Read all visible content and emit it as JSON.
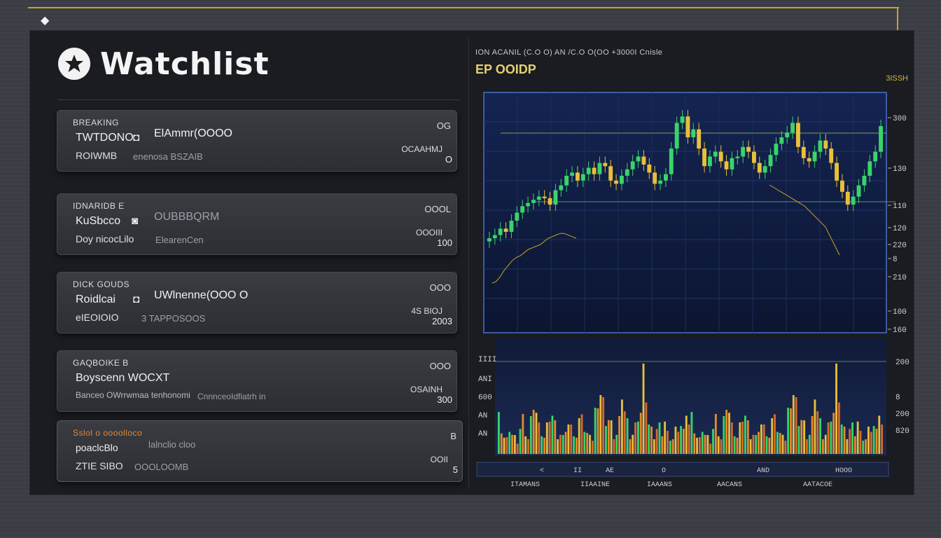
{
  "app": {
    "title": "Watchlist"
  },
  "watchlist": [
    {
      "header": "BREAKING",
      "name": "TWTDONO",
      "price": "ElAmmr(OOOO",
      "sub": "ROIWMB",
      "sub_detail": "enenosa BSZAIB",
      "right_top": "OG",
      "change": "OCAAHMJ",
      "right_bottom": "O"
    },
    {
      "header": "IDNARIDB E",
      "name": "KuSbcco",
      "price": "OUBBBQRM",
      "sub": "Doy nicocLilo",
      "sub_detail": "ElearenCen",
      "right_top": "OOOL",
      "change": "OOOIII",
      "right_bottom": "100"
    },
    {
      "header": "DICK GOUDS",
      "name": "Roidlcai",
      "price": "UWlnenne(OOO O",
      "sub": "eIEOIOIO",
      "sub_detail": "3 TAPPOSOOS",
      "right_top": "OOO",
      "change": "4S BIOJ",
      "right_bottom": "2003"
    },
    {
      "header": "GAQBOIKE B",
      "name": "Boyscenn WOCXT",
      "price": "",
      "sub": "Banceo OWrrwmaa tenhonomi",
      "sub_detail": "CnnnceoIdfiatrh in",
      "right_top": "OOO",
      "change": "OSAINH",
      "right_bottom": "300"
    },
    {
      "header": "Sslol o oooolloco",
      "name": "poaclcBlo",
      "price": "lalnclio cloo",
      "sub": "ZTIE SIBO",
      "sub_detail": "OOOLOOMB",
      "right_top": "B",
      "change": "OOII",
      "right_bottom": "5"
    }
  ],
  "chart_header": {
    "line": "ION ACANIL (C.O O) AN /C.O O(OO +3000I Cnisle",
    "small": "EP OOIDP",
    "right": "3ISSH"
  },
  "chart_data": {
    "type": "candlestick",
    "price_axis_labels": [
      "300",
      "130",
      "110",
      "120",
      "220",
      "8",
      "210",
      "100",
      "160"
    ],
    "volume_axis_labels": [
      "200",
      "8",
      "200",
      "820"
    ],
    "left_volume_labels": [
      "IIII",
      "ANI",
      "600",
      "AN",
      "AN"
    ],
    "time_labels": [
      "<",
      "II",
      "AE",
      "O",
      "AND",
      "HOOO"
    ],
    "bottom_labels": [
      "ITAMANS",
      "IIAAINE",
      "IAAANS",
      "AACANS",
      "AATACOE"
    ],
    "candles": [
      118,
      122,
      130,
      126,
      140,
      150,
      158,
      162,
      166,
      170,
      168,
      160,
      178,
      184,
      196,
      200,
      190,
      198,
      206,
      198,
      212,
      208,
      190,
      186,
      196,
      204,
      214,
      220,
      210,
      200,
      186,
      190,
      198,
      230,
      262,
      270,
      244,
      254,
      230,
      208,
      220,
      226,
      214,
      204,
      218,
      220,
      232,
      226,
      212,
      200,
      208,
      222,
      236,
      244,
      250,
      262,
      232,
      218,
      214,
      226,
      240,
      230,
      212,
      190,
      176,
      160,
      170,
      184,
      196,
      214,
      226,
      258
    ],
    "volumes": [
      40,
      28,
      22,
      16,
      30,
      26,
      18,
      14,
      34,
      38,
      24,
      20,
      36,
      60,
      56,
      30,
      24,
      22,
      30,
      44,
      52,
      32,
      20,
      26,
      18,
      30,
      40,
      28,
      24,
      22,
      34,
      54,
      30,
      20,
      26,
      18,
      44,
      62,
      80,
      54,
      38,
      46,
      32,
      20,
      26,
      36,
      74,
      58,
      34,
      20,
      26,
      30,
      44,
      56,
      86,
      70,
      40,
      26,
      20,
      34,
      30,
      24,
      44,
      22,
      18,
      20,
      26,
      30,
      38,
      24,
      52,
      40
    ],
    "ma_series": [
      62,
      64,
      70,
      78,
      84,
      90,
      94,
      96,
      100,
      104,
      106,
      108,
      110,
      114,
      118,
      120,
      122,
      124,
      124,
      122,
      120,
      118
    ]
  },
  "colors": {
    "accent_gold": "#c9a227",
    "panel_bg": "#1a1c21",
    "chart_bg": "#0f1a36",
    "candle_up": "#39d46a",
    "candle_down": "#e8c03a",
    "vol_orange": "#e88a2a",
    "ma_line": "#c9a227"
  }
}
